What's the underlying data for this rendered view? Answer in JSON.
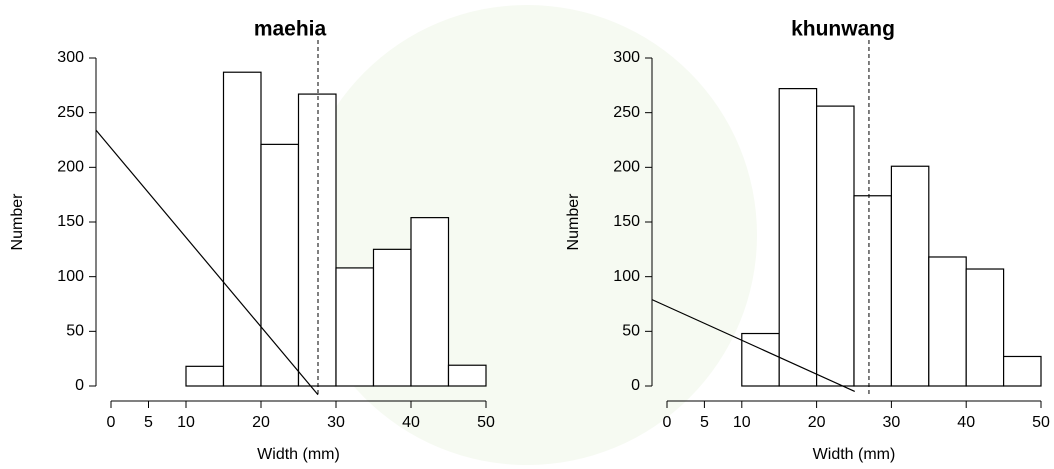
{
  "chart_data": [
    {
      "type": "histogram",
      "title": "maehia",
      "xlabel": "Width (mm)",
      "ylabel": "Number",
      "bins": [
        0,
        5,
        10,
        15,
        20,
        25,
        30,
        35,
        40,
        45,
        50
      ],
      "values": [
        0,
        0,
        18,
        287,
        221,
        267,
        108,
        125,
        154,
        19
      ],
      "xlim": [
        0,
        50
      ],
      "ylim": [
        0,
        300
      ],
      "xticks": [
        0,
        5,
        10,
        20,
        30,
        40,
        50
      ],
      "yticks": [
        0,
        50,
        100,
        150,
        200,
        250,
        300
      ],
      "mean_line": 27.6,
      "fit_line": {
        "x": [
          -2,
          27.6
        ],
        "y": [
          234,
          -8
        ]
      },
      "color": "#ffffff"
    },
    {
      "type": "histogram",
      "title": "khunwang",
      "xlabel": "Width (mm)",
      "ylabel": "Number",
      "bins": [
        0,
        5,
        10,
        15,
        20,
        25,
        30,
        35,
        40,
        45,
        50
      ],
      "values": [
        0,
        0,
        48,
        272,
        256,
        174,
        201,
        118,
        107,
        27
      ],
      "xlim": [
        0,
        50
      ],
      "ylim": [
        0,
        300
      ],
      "xticks": [
        0,
        5,
        10,
        20,
        30,
        40,
        50
      ],
      "yticks": [
        0,
        50,
        100,
        150,
        200,
        250,
        300
      ],
      "mean_line": 27.0,
      "fit_line": {
        "x": [
          -2,
          25.1
        ],
        "y": [
          79,
          -5
        ]
      },
      "color": "#ffffff"
    }
  ]
}
